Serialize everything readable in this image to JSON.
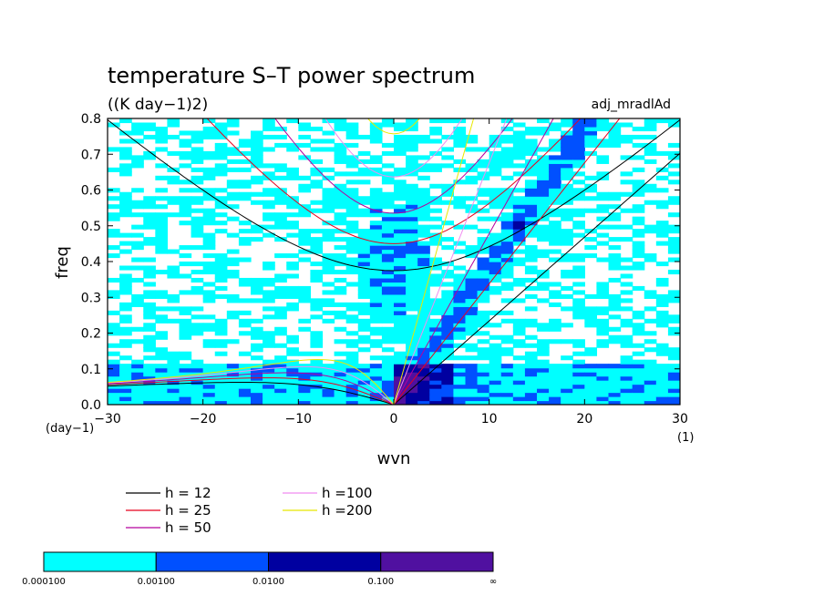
{
  "chart_data": {
    "type": "heatmap",
    "title": "temperature S–T power spectrum",
    "subtitle": "((K day−1)2)",
    "dataset_label": "adj_mradlAd",
    "xlabel": "wvn",
    "ylabel": "freq",
    "x_unit": "(1)",
    "y_unit": "(day−1)",
    "xlim": [
      -30,
      30
    ],
    "ylim": [
      0,
      0.8
    ],
    "x_ticks": [
      -30,
      -20,
      -10,
      0,
      10,
      20,
      30
    ],
    "x_tick_labels": [
      "−30",
      "−20",
      "−10",
      "0",
      "10",
      "20",
      "30"
    ],
    "y_ticks": [
      0.0,
      0.1,
      0.2,
      0.3,
      0.4,
      0.5,
      0.6,
      0.7,
      0.8
    ],
    "y_tick_labels": [
      "0.0",
      "0.1",
      "0.2",
      "0.3",
      "0.4",
      "0.5",
      "0.6",
      "0.7",
      "0.8"
    ],
    "legend": [
      {
        "label": "h = 12",
        "h": 12,
        "color": "#000000"
      },
      {
        "label": "h = 25",
        "h": 25,
        "color": "#e8001c"
      },
      {
        "label": "h = 50",
        "h": 50,
        "color": "#b4009e"
      },
      {
        "label": "h =100",
        "h": 100,
        "color": "#f08cf0"
      },
      {
        "label": "h =200",
        "h": 200,
        "color": "#e8e800"
      }
    ],
    "colorbar": {
      "levels": [
        "0.000100",
        "0.00100",
        "0.0100",
        "0.100",
        "∞"
      ],
      "colors": [
        "#00ffff",
        "#0050ff",
        "#0000a0",
        "#5010a0"
      ]
    }
  }
}
